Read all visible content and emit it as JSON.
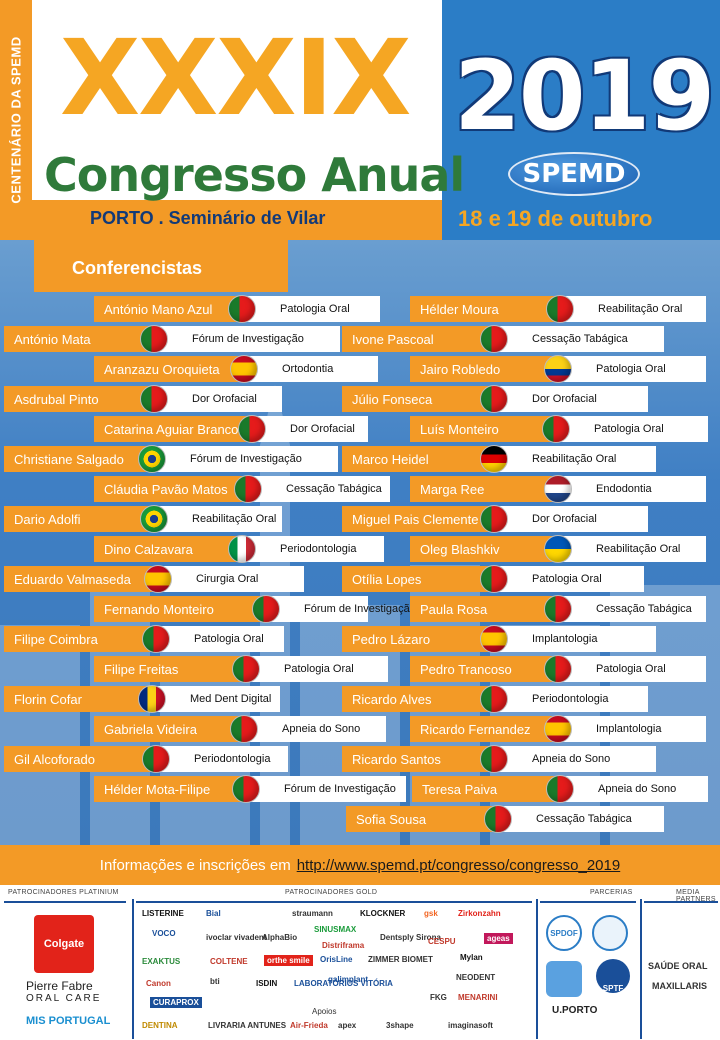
{
  "header": {
    "side_text": "CENTENÁRIO DA SPEMD",
    "roman": "XXXIX",
    "subtitle": "Congresso Anual",
    "location": "PORTO . Seminário de Vilar",
    "year": "2019",
    "badge": "SPEMD",
    "dates": "18 e 19 de outubro"
  },
  "section_title": "Conferencistas",
  "left_column": [
    {
      "name": "António Mano Azul",
      "topic": "Patologia Oral",
      "flag": "pt"
    },
    {
      "name": "António Mata",
      "topic": "Fórum de Investigação",
      "flag": "pt"
    },
    {
      "name": "Aranzazu Oroquieta",
      "topic": "Ortodontia",
      "flag": "es"
    },
    {
      "name": "Asdrubal Pinto",
      "topic": "Dor Orofacial",
      "flag": "pt"
    },
    {
      "name": "Catarina Aguiar Branco",
      "topic": "Dor Orofacial",
      "flag": "pt"
    },
    {
      "name": "Christiane Salgado",
      "topic": "Fórum de Investigação",
      "flag": "br"
    },
    {
      "name": "Cláudia Pavão Matos",
      "topic": "Cessação Tabágica",
      "flag": "pt"
    },
    {
      "name": "Dario Adolfi",
      "topic": "Reabilitação Oral",
      "flag": "br"
    },
    {
      "name": "Dino Calzavara",
      "topic": "Periodontologia",
      "flag": "it"
    },
    {
      "name": "Eduardo Valmaseda",
      "topic": "Cirurgia Oral",
      "flag": "es"
    },
    {
      "name": "Fernando Monteiro",
      "topic": "Fórum de Investigação",
      "flag": "pt"
    },
    {
      "name": "Filipe Coimbra",
      "topic": "Patologia Oral",
      "flag": "pt"
    },
    {
      "name": "Filipe Freitas",
      "topic": "Patologia Oral",
      "flag": "pt"
    },
    {
      "name": "Florin Cofar",
      "topic": "Med Dent Digital",
      "flag": "ro"
    },
    {
      "name": "Gabriela Videira",
      "topic": "Apneia do Sono",
      "flag": "pt"
    },
    {
      "name": "Gil Alcoforado",
      "topic": "Periodontologia",
      "flag": "pt"
    },
    {
      "name": "Hélder Mota-Filipe",
      "topic": "Fórum de Investigação",
      "flag": "pt"
    }
  ],
  "right_column": [
    {
      "name": "Hélder Moura",
      "topic": "Reabilitação Oral",
      "flag": "pt"
    },
    {
      "name": "Ivone Pascoal",
      "topic": "Cessação Tabágica",
      "flag": "pt"
    },
    {
      "name": "Jairo Robledo",
      "topic": "Patologia Oral",
      "flag": "co"
    },
    {
      "name": "Júlio Fonseca",
      "topic": "Dor Orofacial",
      "flag": "pt"
    },
    {
      "name": "Luís Monteiro",
      "topic": "Patologia Oral",
      "flag": "pt"
    },
    {
      "name": "Marco Heidel",
      "topic": "Reabilitação Oral",
      "flag": "de"
    },
    {
      "name": "Marga Ree",
      "topic": "Endodontia",
      "flag": "nl"
    },
    {
      "name": "Miguel Pais Clemente",
      "topic": "Dor Orofacial",
      "flag": "pt"
    },
    {
      "name": "Oleg Blashkiv",
      "topic": "Reabilitação Oral",
      "flag": "ua"
    },
    {
      "name": "Otília Lopes",
      "topic": "Patologia Oral",
      "flag": "pt"
    },
    {
      "name": "Paula Rosa",
      "topic": "Cessação Tabágica",
      "flag": "pt"
    },
    {
      "name": "Pedro Lázaro",
      "topic": "Implantologia",
      "flag": "es"
    },
    {
      "name": "Pedro Trancoso",
      "topic": "Patologia Oral",
      "flag": "pt"
    },
    {
      "name": "Ricardo Alves",
      "topic": "Periodontologia",
      "flag": "pt"
    },
    {
      "name": "Ricardo Fernandez",
      "topic": "Implantologia",
      "flag": "es"
    },
    {
      "name": "Ricardo Santos",
      "topic": "Apneia do Sono",
      "flag": "pt"
    },
    {
      "name": "Teresa Paiva",
      "topic": "Apneia do Sono",
      "flag": "pt"
    },
    {
      "name": "Sofia Sousa",
      "topic": "Cessação Tabágica",
      "flag": "pt"
    }
  ],
  "info": {
    "text": "Informações e inscrições em",
    "url": "http://www.spemd.pt/congresso/congresso_2019"
  },
  "sponsors": {
    "platinum_label": "PATROCINADORES PLATINIUM",
    "gold_label": "PATROCINADORES GOLD",
    "partners_label": "PARCERIAS",
    "media_label": "MEDIA PARTNERS",
    "apoios_label": "Apoios",
    "platinum": [
      "Colgate",
      "Pierre Fabre",
      "ORAL CARE",
      "MIS PORTUGAL"
    ],
    "gold": [
      "LISTERINE",
      "Bial",
      "straumann",
      "KLOCKNER",
      "gsk",
      "Zirkonzahn",
      "VOCO",
      "ivoclar vivadent",
      "AlphaBio",
      "SINUSMAX",
      "Distriframa",
      "Dentsply Sirona",
      "CESPU",
      "ageas",
      "EXAKTUS",
      "COLTENE",
      "orthe smile",
      "OrisLine",
      "ZIMMER BIOMET",
      "Mylan",
      "Canon",
      "bti",
      "ISDIN",
      "LABORATÓRIOS VITÓRIA",
      "galimplant",
      "NEODENT",
      "FKG",
      "MENARINI",
      "CURAPROX"
    ],
    "apoios": [
      "DENTINA",
      "LIVRARIA ANTUNES",
      "Air-Frieda",
      "apex",
      "3shape",
      "imaginasoft"
    ],
    "partners": [
      "SPDOF",
      "SPTF",
      "U.PORTO"
    ],
    "media": [
      "SAÚDE ORAL",
      "MAXILLARIS"
    ]
  },
  "colors": {
    "orange": "#f39a26",
    "blue": "#2b7dc6",
    "green": "#2f7a3a",
    "navy": "#123a78"
  }
}
